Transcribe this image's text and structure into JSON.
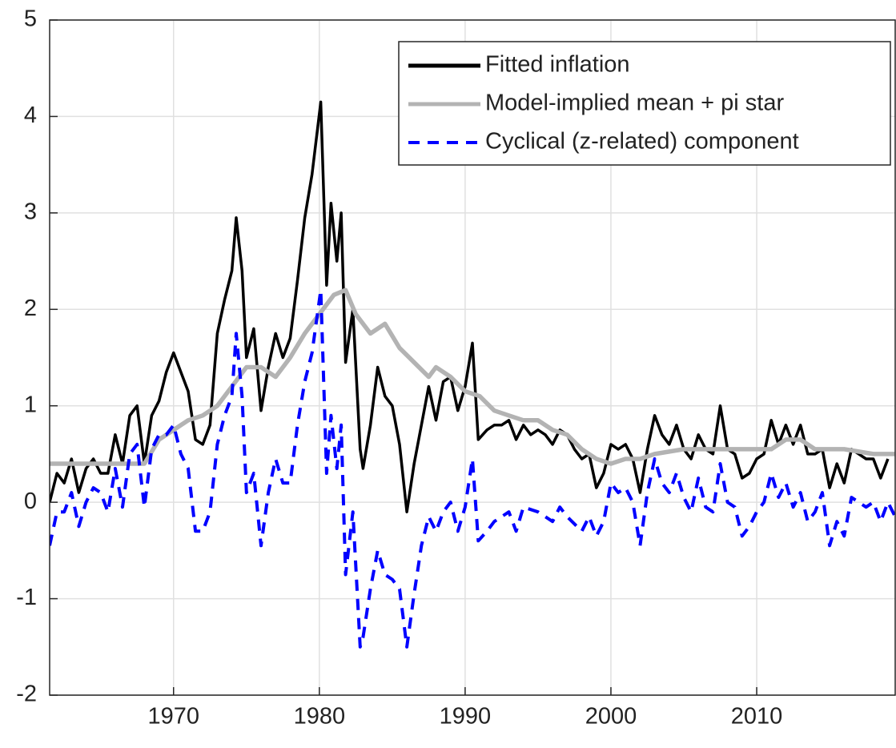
{
  "chart_data": {
    "type": "line",
    "xlim": [
      1961.5,
      2019.5
    ],
    "xticks": [
      1970,
      1980,
      1990,
      2000,
      2010
    ],
    "ylim": [
      -2,
      5
    ],
    "yticks": [
      -2,
      -1,
      0,
      1,
      2,
      3,
      4,
      5
    ],
    "grid": true,
    "legend": "upper right",
    "series": [
      {
        "name": "Fitted inflation",
        "color": "#000000",
        "style": "solid",
        "x": [
          1961.5,
          1962,
          1962.5,
          1963,
          1963.5,
          1964,
          1964.5,
          1965,
          1965.5,
          1966,
          1966.5,
          1967,
          1967.5,
          1968,
          1968.5,
          1969,
          1969.5,
          1970,
          1970.5,
          1971,
          1971.5,
          1972,
          1972.5,
          1973,
          1973.5,
          1974,
          1974.3,
          1974.7,
          1975,
          1975.5,
          1976,
          1976.5,
          1977,
          1977.5,
          1978,
          1978.5,
          1979,
          1979.5,
          1980.1,
          1980.5,
          1980.8,
          1981.2,
          1981.5,
          1981.8,
          1982.3,
          1982.8,
          1983,
          1983.5,
          1984,
          1984.5,
          1985,
          1985.5,
          1986,
          1986.5,
          1987,
          1987.5,
          1988,
          1988.5,
          1989,
          1989.5,
          1990,
          1990.5,
          1990.9,
          1991.5,
          1992,
          1992.5,
          1993,
          1993.5,
          1994,
          1994.5,
          1995,
          1995.5,
          1996,
          1996.5,
          1997,
          1997.5,
          1998,
          1998.5,
          1999,
          1999.5,
          2000,
          2000.5,
          2001,
          2001.5,
          2002,
          2002.5,
          2003,
          2003.5,
          2004,
          2004.5,
          2005,
          2005.5,
          2006,
          2006.5,
          2007,
          2007.5,
          2008,
          2008.5,
          2009,
          2009.5,
          2010,
          2010.5,
          2011,
          2011.5,
          2012,
          2012.5,
          2013,
          2013.5,
          2014,
          2014.5,
          2015,
          2015.5,
          2016,
          2016.5,
          2017,
          2017.5,
          2018,
          2018.5,
          2019
        ],
        "values": [
          0.0,
          0.3,
          0.2,
          0.45,
          0.1,
          0.35,
          0.45,
          0.3,
          0.3,
          0.7,
          0.4,
          0.9,
          1.0,
          0.4,
          0.9,
          1.05,
          1.35,
          1.55,
          1.35,
          1.15,
          0.65,
          0.6,
          0.8,
          1.75,
          2.1,
          2.4,
          2.95,
          2.4,
          1.5,
          1.8,
          0.95,
          1.4,
          1.75,
          1.5,
          1.7,
          2.3,
          2.95,
          3.4,
          4.15,
          2.25,
          3.1,
          2.5,
          3.0,
          1.45,
          2.0,
          0.55,
          0.35,
          0.8,
          1.4,
          1.1,
          1.0,
          0.6,
          -0.1,
          0.4,
          0.8,
          1.2,
          0.85,
          1.25,
          1.3,
          0.95,
          1.2,
          1.65,
          0.65,
          0.75,
          0.8,
          0.8,
          0.85,
          0.65,
          0.8,
          0.7,
          0.75,
          0.7,
          0.6,
          0.75,
          0.7,
          0.55,
          0.45,
          0.5,
          0.15,
          0.3,
          0.6,
          0.55,
          0.6,
          0.45,
          0.1,
          0.55,
          0.9,
          0.7,
          0.6,
          0.8,
          0.55,
          0.45,
          0.7,
          0.55,
          0.5,
          1.0,
          0.55,
          0.5,
          0.25,
          0.3,
          0.45,
          0.5,
          0.85,
          0.6,
          0.8,
          0.6,
          0.8,
          0.5,
          0.5,
          0.55,
          0.15,
          0.4,
          0.2,
          0.55,
          0.5,
          0.45,
          0.45,
          0.25,
          0.45
        ]
      },
      {
        "name": "Model-implied mean + pi star",
        "color": "#b3b3b3",
        "style": "solid",
        "x": [
          1961.5,
          1968,
          1969,
          1970,
          1971,
          1972,
          1973,
          1974,
          1975,
          1976,
          1977,
          1978,
          1979,
          1980,
          1981,
          1981.8,
          1982.5,
          1983.5,
          1984.5,
          1985.5,
          1986.5,
          1987.5,
          1988,
          1989,
          1990,
          1991,
          1992,
          1993,
          1994,
          1995,
          1996,
          1997,
          1998,
          1999,
          2000,
          2001,
          2002,
          2003,
          2005,
          2007,
          2009,
          2011,
          2012,
          2013,
          2014,
          2016,
          2018,
          2019.5
        ],
        "values": [
          0.4,
          0.4,
          0.65,
          0.75,
          0.85,
          0.9,
          1.0,
          1.2,
          1.4,
          1.4,
          1.3,
          1.5,
          1.75,
          1.95,
          2.15,
          2.2,
          1.95,
          1.75,
          1.85,
          1.6,
          1.45,
          1.3,
          1.4,
          1.3,
          1.15,
          1.1,
          0.95,
          0.9,
          0.85,
          0.85,
          0.75,
          0.7,
          0.55,
          0.45,
          0.4,
          0.45,
          0.45,
          0.5,
          0.55,
          0.55,
          0.55,
          0.55,
          0.65,
          0.65,
          0.55,
          0.55,
          0.5,
          0.5
        ]
      },
      {
        "name": "Cyclical (z-related) component",
        "color": "#0000ff",
        "style": "dashed",
        "x": [
          1961.5,
          1962,
          1962.5,
          1963,
          1963.5,
          1964,
          1964.5,
          1965,
          1965.5,
          1966,
          1966.5,
          1967,
          1967.5,
          1968,
          1968.5,
          1969,
          1969.5,
          1970,
          1970.5,
          1971,
          1971.5,
          1972,
          1972.5,
          1973,
          1973.5,
          1974,
          1974.3,
          1974.7,
          1975,
          1975.5,
          1976,
          1976.5,
          1977,
          1977.5,
          1978,
          1978.5,
          1979,
          1979.5,
          1980.1,
          1980.5,
          1980.8,
          1981.2,
          1981.5,
          1981.8,
          1982.3,
          1982.8,
          1983,
          1983.5,
          1984,
          1984.5,
          1985,
          1985.5,
          1986,
          1986.5,
          1987,
          1987.5,
          1988,
          1988.5,
          1989,
          1989.5,
          1990,
          1990.5,
          1990.9,
          1991.5,
          1992,
          1993,
          1993.5,
          1994,
          1995,
          1996,
          1996.5,
          1997,
          1998,
          1998.5,
          1999,
          1999.5,
          2000,
          2000.5,
          2001,
          2001.5,
          2002,
          2002.5,
          2003,
          2003.5,
          2004,
          2004.5,
          2005,
          2005.5,
          2006,
          2006.5,
          2007,
          2007.5,
          2008,
          2008.5,
          2009,
          2009.5,
          2010,
          2010.5,
          2011,
          2011.5,
          2012,
          2012.5,
          2013,
          2013.5,
          2014,
          2014.5,
          2015,
          2015.5,
          2016,
          2016.5,
          2017,
          2017.5,
          2018,
          2018.5,
          2019,
          2019.5
        ],
        "values": [
          -0.45,
          -0.1,
          -0.1,
          0.1,
          -0.25,
          0.0,
          0.15,
          0.1,
          -0.1,
          0.35,
          -0.05,
          0.5,
          0.6,
          -0.05,
          0.55,
          0.7,
          0.7,
          0.8,
          0.5,
          0.35,
          -0.3,
          -0.3,
          -0.1,
          0.6,
          0.9,
          1.1,
          1.75,
          1.1,
          0.1,
          0.3,
          -0.45,
          0.1,
          0.45,
          0.2,
          0.2,
          0.8,
          1.25,
          1.55,
          2.2,
          0.3,
          0.9,
          0.35,
          0.8,
          -0.75,
          -0.1,
          -1.5,
          -1.4,
          -0.9,
          -0.5,
          -0.75,
          -0.8,
          -0.9,
          -1.5,
          -0.95,
          -0.45,
          -0.15,
          -0.3,
          -0.1,
          0.0,
          -0.3,
          -0.05,
          0.45,
          -0.4,
          -0.3,
          -0.2,
          -0.1,
          -0.3,
          -0.05,
          -0.1,
          -0.2,
          -0.05,
          -0.15,
          -0.3,
          -0.15,
          -0.35,
          -0.2,
          0.2,
          0.1,
          0.15,
          0.0,
          -0.45,
          0.1,
          0.45,
          0.2,
          0.1,
          0.3,
          0.05,
          -0.1,
          0.25,
          -0.05,
          -0.1,
          0.4,
          0.0,
          -0.05,
          -0.35,
          -0.25,
          -0.1,
          0.0,
          0.3,
          0.05,
          0.2,
          -0.05,
          0.1,
          -0.2,
          -0.1,
          0.1,
          -0.45,
          -0.2,
          -0.35,
          0.05,
          0.0,
          -0.05,
          0.0,
          -0.2,
          0.0,
          -0.15
        ]
      }
    ]
  }
}
